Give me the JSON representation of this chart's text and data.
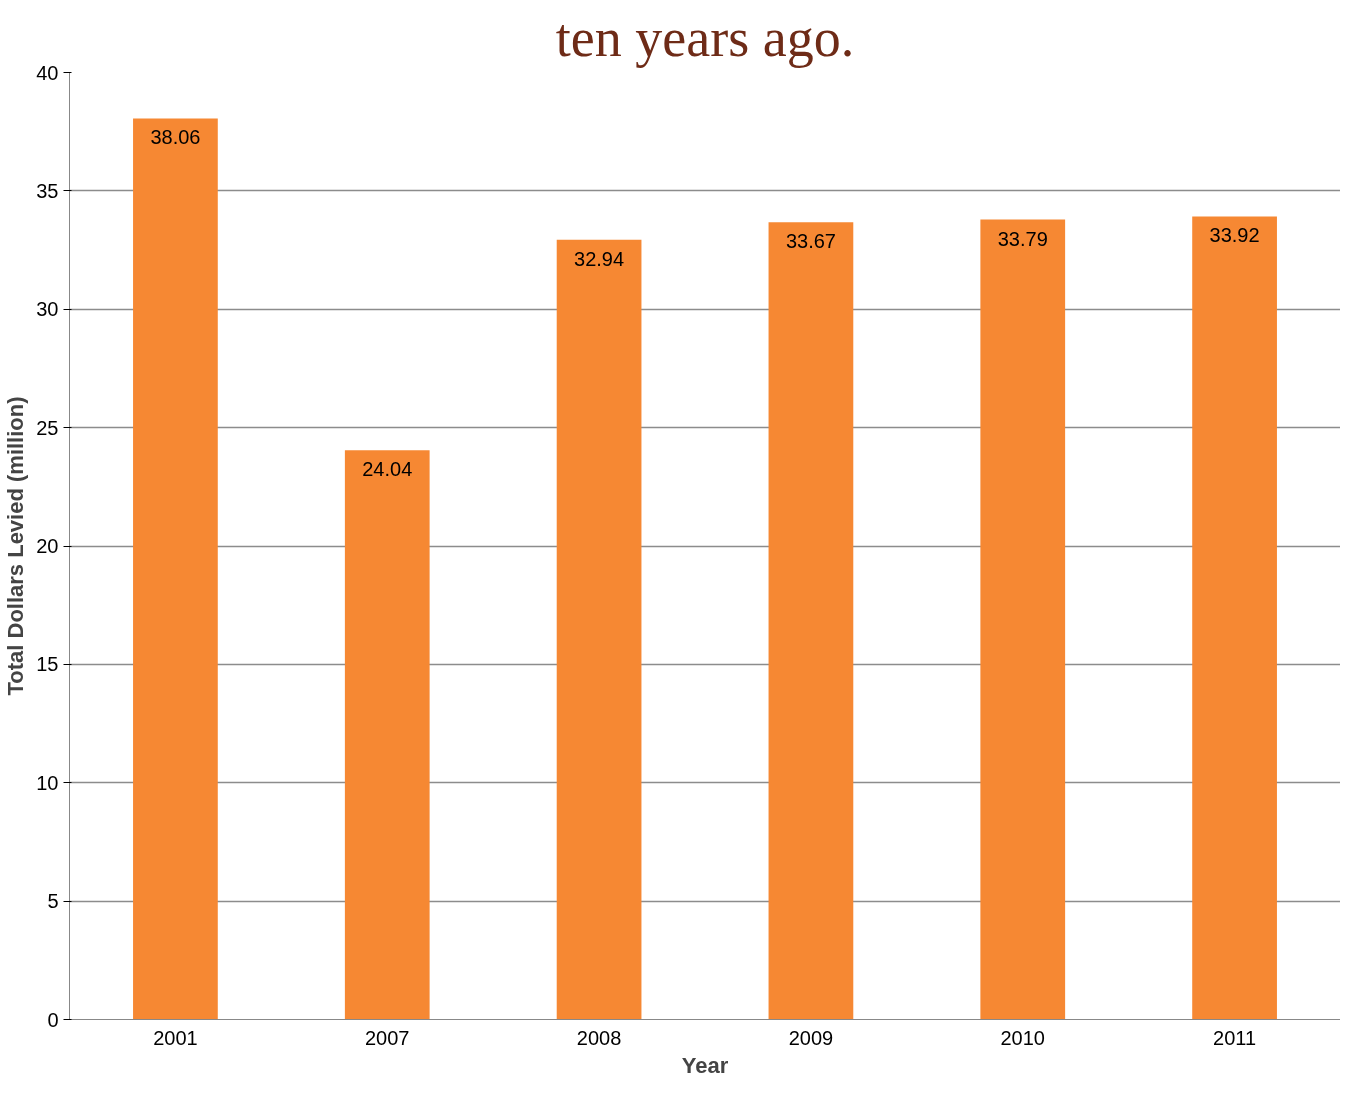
{
  "chart_data": {
    "type": "bar",
    "title": "ten years ago.",
    "xlabel": "Year",
    "ylabel": "Total Dollars Levied (million)",
    "categories": [
      "2001",
      "2007",
      "2008",
      "2009",
      "2010",
      "2011"
    ],
    "values": [
      38.06,
      24.04,
      32.94,
      33.67,
      33.79,
      33.92
    ],
    "color": "#f68833",
    "ylim": [
      0,
      40
    ],
    "yticks": [
      0,
      5,
      10,
      15,
      20,
      25,
      30,
      35,
      40
    ],
    "grid": "y",
    "data_labels": true
  }
}
